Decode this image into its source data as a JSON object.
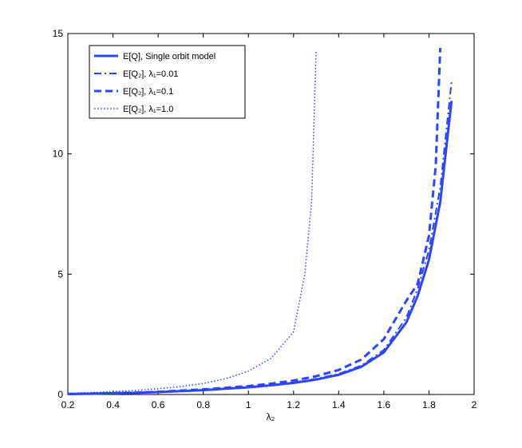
{
  "chart_data": {
    "type": "line",
    "xlabel": "λ₂",
    "xlim": [
      0.2,
      2
    ],
    "xticks": [
      0.2,
      0.4,
      0.6,
      0.8,
      1,
      1.2,
      1.4,
      1.6,
      1.8,
      2
    ],
    "ylim": [
      0,
      15
    ],
    "yticks": [
      0,
      5,
      10,
      15
    ],
    "grid": false,
    "legend_position": "upper-left",
    "series": [
      {
        "name": "E[Q], Single orbit model",
        "color": "#2b45ff",
        "linestyle": "solid",
        "linewidth": 3,
        "x": [
          0.2,
          0.3,
          0.4,
          0.5,
          0.6,
          0.7,
          0.8,
          0.9,
          1.0,
          1.1,
          1.2,
          1.3,
          1.4,
          1.5,
          1.6,
          1.7,
          1.75,
          1.8,
          1.85,
          1.9
        ],
        "values": [
          0.02,
          0.03,
          0.05,
          0.07,
          0.1,
          0.14,
          0.18,
          0.24,
          0.3,
          0.38,
          0.48,
          0.62,
          0.82,
          1.15,
          1.75,
          3.0,
          4.1,
          5.6,
          8.0,
          12.2
        ]
      },
      {
        "name": "E[Q₂], λ₁=0.01",
        "color": "#2b45ff",
        "linestyle": "dashdot",
        "linewidth": 2,
        "x": [
          0.2,
          0.3,
          0.4,
          0.5,
          0.6,
          0.7,
          0.8,
          0.9,
          1.0,
          1.1,
          1.2,
          1.3,
          1.4,
          1.5,
          1.6,
          1.7,
          1.75,
          1.8,
          1.85,
          1.9
        ],
        "values": [
          0.02,
          0.03,
          0.05,
          0.07,
          0.1,
          0.14,
          0.19,
          0.25,
          0.31,
          0.39,
          0.5,
          0.65,
          0.86,
          1.2,
          1.85,
          3.2,
          4.4,
          6.0,
          8.6,
          13.0
        ]
      },
      {
        "name": "E[Q₂], λ₁=0.1",
        "color": "#2b45ff",
        "linestyle": "dashed",
        "linewidth": 3,
        "x": [
          0.2,
          0.3,
          0.4,
          0.5,
          0.6,
          0.7,
          0.8,
          0.9,
          1.0,
          1.1,
          1.2,
          1.3,
          1.4,
          1.5,
          1.6,
          1.7,
          1.75,
          1.8,
          1.83,
          1.85
        ],
        "values": [
          0.02,
          0.04,
          0.06,
          0.08,
          0.11,
          0.16,
          0.21,
          0.28,
          0.35,
          0.45,
          0.58,
          0.76,
          1.02,
          1.45,
          2.3,
          3.9,
          4.6,
          6.6,
          9.5,
          14.4
        ]
      },
      {
        "name": "E[Q₂], λ₁=1.0",
        "color": "#2b45ff",
        "linestyle": "dotted",
        "linewidth": 1.5,
        "x": [
          0.2,
          0.3,
          0.4,
          0.5,
          0.6,
          0.7,
          0.8,
          0.9,
          1.0,
          1.1,
          1.2,
          1.25,
          1.28,
          1.3
        ],
        "values": [
          0.05,
          0.08,
          0.12,
          0.17,
          0.24,
          0.33,
          0.46,
          0.66,
          0.97,
          1.5,
          2.6,
          5.0,
          8.0,
          14.3
        ]
      }
    ]
  }
}
